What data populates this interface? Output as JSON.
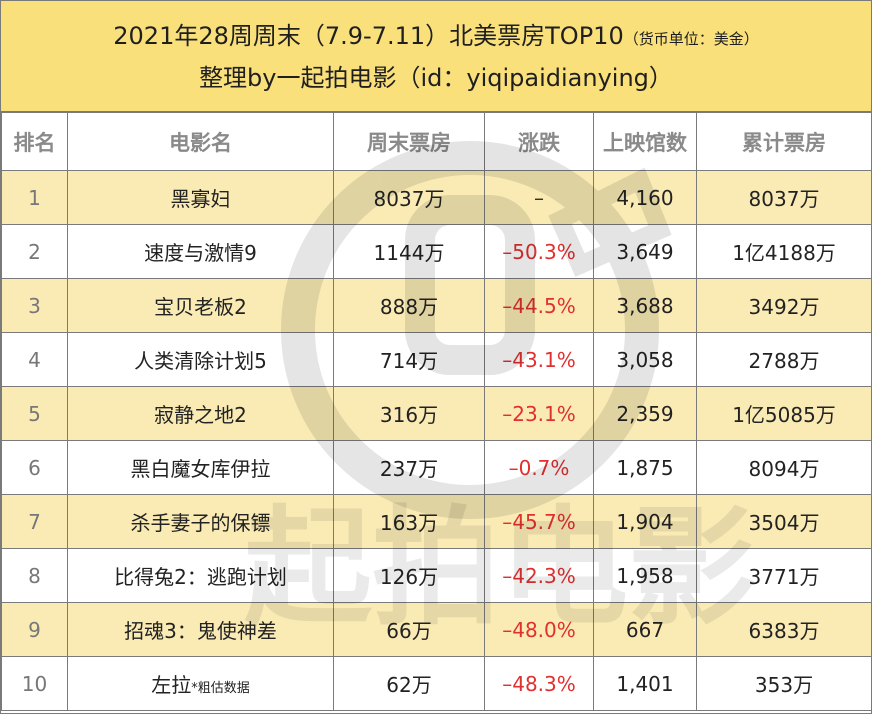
{
  "title": {
    "line1_main": "2021年28周周末（7.9-7.11）北美票房TOP10",
    "line1_note": "（货币单位：美金）",
    "line2": "整理by一起拍电影（id：yiqipaidianying）"
  },
  "columns": [
    "排名",
    "电影名",
    "周末票房",
    "涨跌",
    "上映馆数",
    "累计票房"
  ],
  "rows": [
    {
      "rank": "1",
      "title": "黑寡妇",
      "note": "",
      "weekend": "8037万",
      "change": "–",
      "theaters": "4,160",
      "total": "8037万"
    },
    {
      "rank": "2",
      "title": "速度与激情9",
      "note": "",
      "weekend": "1144万",
      "change": "–50.3%",
      "theaters": "3,649",
      "total": "1亿4188万"
    },
    {
      "rank": "3",
      "title": "宝贝老板2",
      "note": "",
      "weekend": "888万",
      "change": "–44.5%",
      "theaters": "3,688",
      "total": "3492万"
    },
    {
      "rank": "4",
      "title": "人类清除计划5",
      "note": "",
      "weekend": "714万",
      "change": "–43.1%",
      "theaters": "3,058",
      "total": "2788万"
    },
    {
      "rank": "5",
      "title": "寂静之地2",
      "note": "",
      "weekend": "316万",
      "change": "–23.1%",
      "theaters": "2,359",
      "total": "1亿5085万"
    },
    {
      "rank": "6",
      "title": "黑白魔女库伊拉",
      "note": "",
      "weekend": "237万",
      "change": "–0.7%",
      "theaters": "1,875",
      "total": "8094万"
    },
    {
      "rank": "7",
      "title": "杀手妻子的保镖",
      "note": "",
      "weekend": "163万",
      "change": "–45.7%",
      "theaters": "1,904",
      "total": "3504万"
    },
    {
      "rank": "8",
      "title": "比得兔2：逃跑计划",
      "note": "",
      "weekend": "126万",
      "change": "–42.3%",
      "theaters": "1,958",
      "total": "3771万"
    },
    {
      "rank": "9",
      "title": "招魂3：鬼使神差",
      "note": "",
      "weekend": "66万",
      "change": "–48.0%",
      "theaters": "667",
      "total": "6383万"
    },
    {
      "rank": "10",
      "title": "左拉",
      "note": "*粗估数据",
      "weekend": "62万",
      "change": "–48.3%",
      "theaters": "1,401",
      "total": "353万"
    }
  ],
  "watermark": {
    "text": "起拍电影"
  },
  "colors": {
    "header_yellow": "#f9e07a",
    "row_highlight": "#f9e5a0",
    "decline_red": "#e03030",
    "border": "#7a7a7a"
  }
}
